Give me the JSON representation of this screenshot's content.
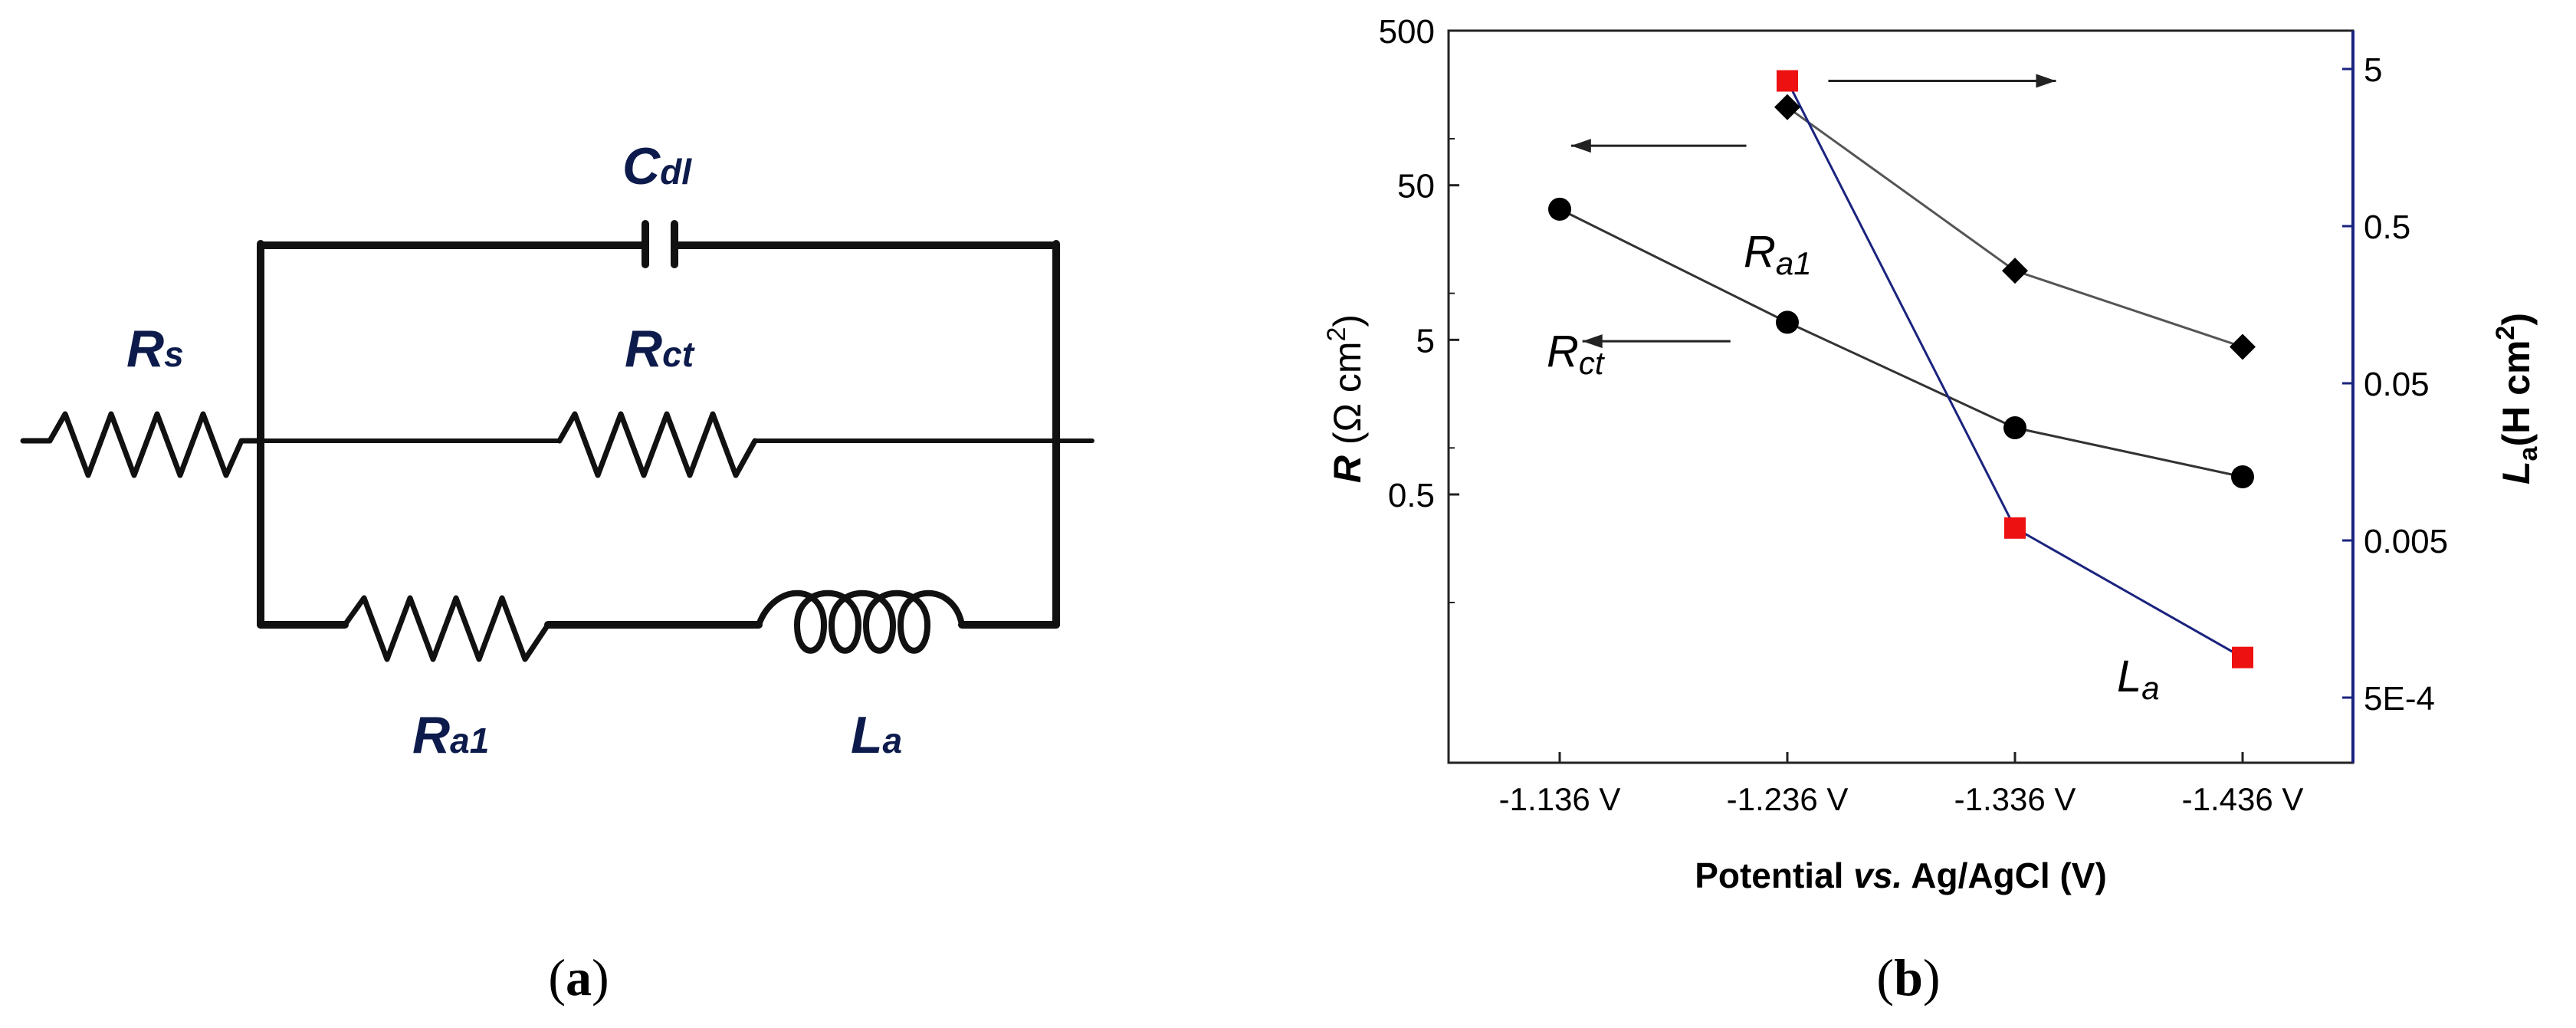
{
  "panel_a": {
    "label_open": "(",
    "label_letter": "a",
    "label_close": ")",
    "circuit": {
      "Rs": {
        "main": "R",
        "sub": "s"
      },
      "Cdl": {
        "main": "C",
        "sub": "dl"
      },
      "Rct": {
        "main": "R",
        "sub": "ct"
      },
      "Ra1": {
        "main": "R",
        "sub": "a1"
      },
      "La": {
        "main": "L",
        "sub": "a"
      }
    },
    "label_color": "#0d1b4c"
  },
  "panel_b": {
    "label_open": "(",
    "label_letter": "b",
    "label_close": ")"
  },
  "chart_data": {
    "type": "line",
    "categories": [
      "-1.136 V",
      "-1.236 V",
      "-1.336 V",
      "-1.436 V"
    ],
    "xlabel": "Potential vs. Ag/AgCl (V)",
    "xlabel_parts": {
      "pre": "Potential ",
      "italic": "vs.",
      "post": " Ag/AgCl (V)"
    },
    "ylabel_left": {
      "main": "R",
      "unit": " (Ω cm",
      "sup": "2",
      "close": ")"
    },
    "ylabel_right": {
      "main": "L",
      "sub": "a",
      "unit": "(H cm",
      "sup": "2",
      "close": ")"
    },
    "y_left": {
      "scale": "log",
      "ylim": [
        0.1,
        500
      ],
      "ticks": [
        "500",
        "50",
        "5",
        "0.5"
      ],
      "tick_values": [
        500,
        50,
        5,
        0.5
      ]
    },
    "y_right": {
      "scale": "log",
      "ylim": [
        0.0001,
        5
      ],
      "ticks": [
        "5",
        "0.5",
        "0.05",
        "0.005",
        "5E-4"
      ],
      "tick_values": [
        5,
        0.5,
        0.05,
        0.005,
        0.0005
      ],
      "color": "#1a237e"
    },
    "grid": false,
    "series": [
      {
        "name": "Rct",
        "label_main": "R",
        "label_sub": "ct",
        "axis": "left",
        "marker": "circle",
        "color": "#000000",
        "line_color": "#333333",
        "values": [
          35,
          6.5,
          1.35,
          0.65
        ]
      },
      {
        "name": "Ra1",
        "label_main": "R",
        "label_sub": "a1",
        "axis": "left",
        "marker": "diamond",
        "color": "#000000",
        "line_color": "#555555",
        "values": [
          null,
          160,
          14,
          4.5
        ]
      },
      {
        "name": "La",
        "label_main": "L",
        "label_sub": "a",
        "axis": "right",
        "marker": "square",
        "color": "#ee1111",
        "line_color": "#1a237e",
        "values": [
          null,
          4.2,
          0.006,
          0.0009
        ]
      }
    ],
    "arrows": [
      {
        "direction": "right",
        "from_category": 1.18,
        "to_category": 2.18,
        "axis": "right",
        "at": 4.2
      },
      {
        "direction": "left",
        "from_category": 0.82,
        "to_category": 0.05,
        "axis": "left",
        "at": 90
      },
      {
        "direction": "left",
        "from_category": 0.75,
        "to_category": 0.1,
        "axis": "left",
        "at": 4.9
      }
    ]
  }
}
